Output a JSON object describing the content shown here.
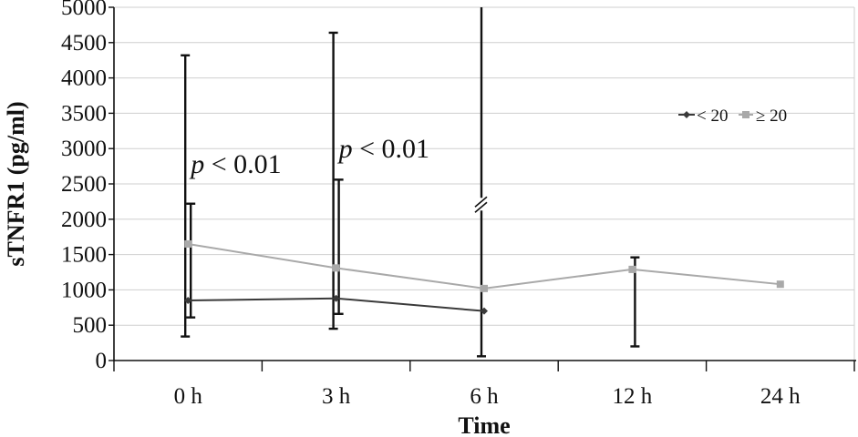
{
  "chart_data": {
    "type": "line",
    "title": "",
    "xlabel": "Time",
    "ylabel": "sTNFR1 (pg/ml)",
    "categories": [
      "0 h",
      "3 h",
      "6 h",
      "12 h",
      "24 h"
    ],
    "ylim": [
      0,
      5000
    ],
    "yticks": [
      0,
      500,
      1000,
      1500,
      2000,
      2500,
      3000,
      3500,
      4000,
      4500,
      5000
    ],
    "grid": "horizontal",
    "legend_position": "right",
    "series": [
      {
        "name": "< 20",
        "color": "#3a3a3a",
        "marker": "diamond",
        "values": [
          850,
          880,
          700,
          null,
          null
        ],
        "error_low": [
          340,
          450,
          60,
          null,
          null
        ],
        "error_high": [
          4320,
          4640,
          5000,
          null,
          null
        ],
        "axis_break_at": 2
      },
      {
        "name": "≥ 20",
        "color": "#a9a9a9",
        "marker": "square",
        "values": [
          1650,
          1310,
          1020,
          1290,
          1080
        ],
        "error_low": [
          610,
          660,
          null,
          200,
          null
        ],
        "error_high": [
          2220,
          2560,
          null,
          1460,
          null
        ]
      }
    ],
    "annotations": [
      {
        "text_italic": "p",
        "text": " < 0.01",
        "category": "0 h"
      },
      {
        "text_italic": "p",
        "text": " < 0.01",
        "category": "3 h"
      }
    ]
  }
}
